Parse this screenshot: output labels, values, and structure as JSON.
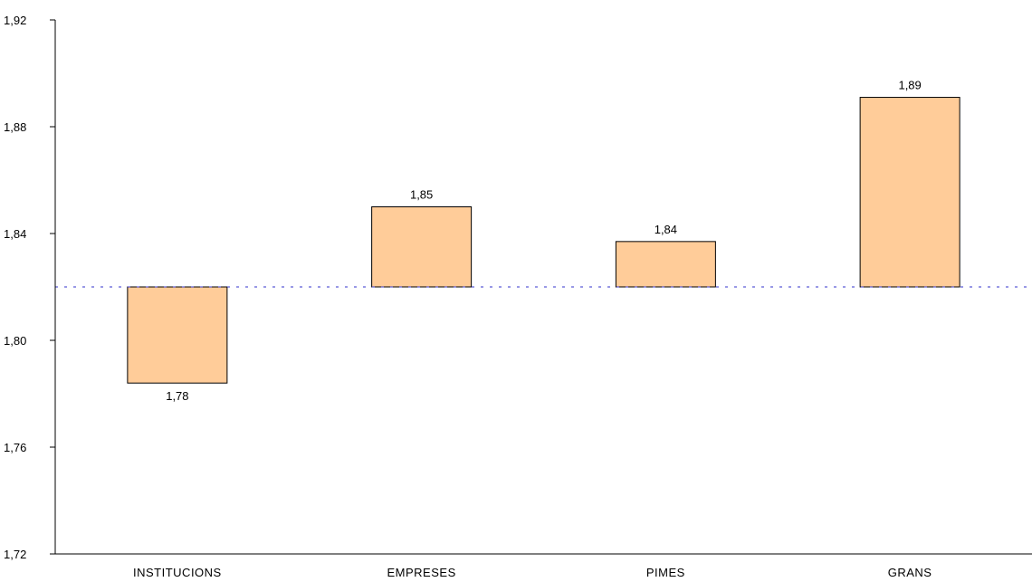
{
  "chart_data": {
    "type": "bar",
    "categories": [
      "INSTITUCIONS",
      "EMPRESES",
      "PIMES",
      "GRANS"
    ],
    "values": [
      1.784,
      1.85,
      1.837,
      1.891
    ],
    "data_labels": [
      "1,78",
      "1,85",
      "1,84",
      "1,89"
    ],
    "baseline": 1.82,
    "ylim": [
      1.72,
      1.92
    ],
    "yticks": [
      1.72,
      1.76,
      1.8,
      1.84,
      1.88,
      1.92
    ],
    "ytick_labels": [
      "1,72",
      "1,76",
      "1,80",
      "1,84",
      "1,88",
      "1,92"
    ],
    "title": "",
    "xlabel": "",
    "ylabel": "",
    "grid": false,
    "colors": {
      "bar_fill": "#FFCC99",
      "bar_stroke": "#000000",
      "baseline": "#3333CC",
      "axis": "#000000"
    }
  }
}
